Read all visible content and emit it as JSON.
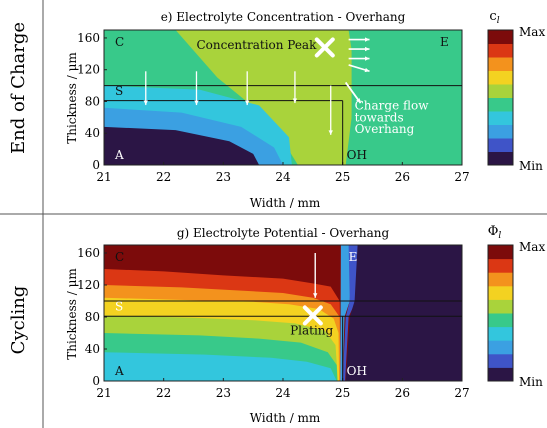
{
  "chart_data": [
    {
      "type": "heatmap",
      "title": "e) Electrolyte Concentration - Overhang",
      "row_label": "End of Charge",
      "xlabel": "Width / mm",
      "ylabel": "Thickness / μm",
      "xlim": [
        21,
        27
      ],
      "ylim": [
        0,
        170
      ],
      "x_ticks": [
        "21",
        "22",
        "23",
        "24",
        "25",
        "26",
        "27"
      ],
      "y_ticks": [
        "0",
        "40",
        "80",
        "120",
        "160"
      ],
      "x_tick_values": [
        21,
        22,
        23,
        24,
        25,
        26,
        27
      ],
      "y_tick_values": [
        0,
        40,
        80,
        120,
        160
      ],
      "region_lines": {
        "y": [
          100,
          81
        ],
        "x_overhang": 25.0,
        "x_separator_end": 25.0
      },
      "region_labels": [
        "C",
        "S",
        "A",
        "E",
        "OH"
      ],
      "annotations": [
        "Concentration Peak",
        "Charge flow",
        "towards",
        "Overhang"
      ],
      "peak_marker": {
        "x": 24.7,
        "y": 148
      },
      "colorbar": {
        "label": "c",
        "label_sub": "l",
        "max_label": "Max",
        "min_label": "Min"
      },
      "levels": 10,
      "contour_bands": [
        {
          "level": 9,
          "points": [
            [
              24.35,
              170
            ],
            [
              25.0,
              170
            ],
            [
              24.98,
              150
            ],
            [
              24.9,
              135
            ],
            [
              24.75,
              128
            ],
            [
              24.55,
              135
            ],
            [
              24.45,
              152
            ]
          ]
        },
        {
          "level": 8,
          "points": [
            [
              24.1,
              170
            ],
            [
              25.05,
              170
            ],
            [
              25.0,
              140
            ],
            [
              24.92,
              118
            ],
            [
              24.72,
              108
            ],
            [
              24.45,
              116
            ],
            [
              24.28,
              140
            ]
          ]
        },
        {
          "level": 7,
          "points": [
            [
              23.8,
              170
            ],
            [
              25.1,
              170
            ],
            [
              25.05,
              125
            ],
            [
              24.95,
              90
            ],
            [
              24.7,
              62
            ],
            [
              24.4,
              85
            ],
            [
              24.0,
              130
            ]
          ]
        },
        {
          "level": 6,
          "points": [
            [
              23.3,
              170
            ],
            [
              25.12,
              170
            ],
            [
              25.1,
              100
            ],
            [
              25.0,
              0
            ],
            [
              24.55,
              0
            ],
            [
              24.2,
              70
            ],
            [
              23.6,
              130
            ]
          ]
        },
        {
          "level": 5,
          "points": [
            [
              22.2,
              170
            ],
            [
              25.15,
              170
            ],
            [
              25.15,
              0
            ],
            [
              24.25,
              0
            ],
            [
              23.8,
              55
            ],
            [
              22.9,
              110
            ]
          ]
        },
        {
          "level": 3,
          "points": [
            [
              21,
              100
            ],
            [
              22.6,
              95
            ],
            [
              23.6,
              75
            ],
            [
              24.1,
              35
            ],
            [
              24.15,
              0
            ],
            [
              21,
              0
            ]
          ]
        },
        {
          "level": 2,
          "points": [
            [
              21,
              72
            ],
            [
              22.3,
              66
            ],
            [
              23.3,
              48
            ],
            [
              23.85,
              22
            ],
            [
              24.0,
              0
            ],
            [
              21,
              0
            ]
          ]
        },
        {
          "level": 0,
          "points": [
            [
              21,
              48
            ],
            [
              22.2,
              44
            ],
            [
              23.1,
              30
            ],
            [
              23.5,
              14
            ],
            [
              23.6,
              0
            ],
            [
              21,
              0
            ]
          ]
        },
        {
          "level": 4,
          "points": [
            [
              25.1,
              170
            ],
            [
              27,
              170
            ],
            [
              27,
              0
            ],
            [
              25.05,
              0
            ],
            [
              25.15,
              60
            ],
            [
              25.2,
              120
            ]
          ]
        }
      ],
      "base_level": 4
    },
    {
      "type": "heatmap",
      "title": "g) Electrolyte Potential - Overhang",
      "row_label": "Cycling",
      "xlabel": "Width / mm",
      "ylabel": "Thickness / μm",
      "xlim": [
        21,
        27
      ],
      "ylim": [
        0,
        170
      ],
      "x_ticks": [
        "21",
        "22",
        "23",
        "24",
        "25",
        "26",
        "27"
      ],
      "y_ticks": [
        "0",
        "40",
        "80",
        "120",
        "160"
      ],
      "x_tick_values": [
        21,
        22,
        23,
        24,
        25,
        26,
        27
      ],
      "y_tick_values": [
        0,
        40,
        80,
        120,
        160
      ],
      "region_lines": {
        "y": [
          100,
          81
        ],
        "x_overhang": 25.0,
        "x_separator_end": 25.0
      },
      "region_labels": [
        "C",
        "S",
        "A",
        "E",
        "OH"
      ],
      "annotations": [
        "Plating"
      ],
      "plating_marker": {
        "x": 24.5,
        "y": 82
      },
      "colorbar": {
        "label": "Φ",
        "label_sub": "l",
        "max_label": "Max",
        "min_label": "Min"
      },
      "levels": 10,
      "contour_bands": [
        {
          "level": 8,
          "points": [
            [
              21,
              140
            ],
            [
              22.0,
              137
            ],
            [
              23.0,
              132
            ],
            [
              24.0,
              128
            ],
            [
              24.5,
              122
            ],
            [
              24.8,
              118
            ],
            [
              24.95,
              100
            ],
            [
              24.97,
              0
            ],
            [
              21,
              0
            ]
          ]
        },
        {
          "level": 7,
          "points": [
            [
              21,
              120
            ],
            [
              22.3,
              117
            ],
            [
              23.3,
              113
            ],
            [
              24.0,
              110
            ],
            [
              24.5,
              104
            ],
            [
              24.8,
              96
            ],
            [
              24.95,
              80
            ],
            [
              24.96,
              0
            ],
            [
              21,
              0
            ]
          ]
        },
        {
          "level": 6,
          "points": [
            [
              21,
              104
            ],
            [
              22.5,
              101
            ],
            [
              23.5,
              99
            ],
            [
              24.1,
              96
            ],
            [
              24.6,
              90
            ],
            [
              24.85,
              78
            ],
            [
              24.93,
              60
            ],
            [
              24.94,
              0
            ],
            [
              21,
              0
            ]
          ]
        },
        {
          "level": 5,
          "points": [
            [
              21,
              82
            ],
            [
              22.5,
              79
            ],
            [
              23.5,
              76
            ],
            [
              24.2,
              72
            ],
            [
              24.7,
              63
            ],
            [
              24.88,
              45
            ],
            [
              24.92,
              0
            ],
            [
              21,
              0
            ]
          ]
        },
        {
          "level": 4,
          "points": [
            [
              21,
              60
            ],
            [
              22.6,
              57
            ],
            [
              23.6,
              53
            ],
            [
              24.3,
              48
            ],
            [
              24.75,
              36
            ],
            [
              24.9,
              20
            ],
            [
              24.91,
              0
            ],
            [
              21,
              0
            ]
          ]
        },
        {
          "level": 3,
          "points": [
            [
              21,
              36
            ],
            [
              22.7,
              33
            ],
            [
              23.8,
              29
            ],
            [
              24.4,
              24
            ],
            [
              24.8,
              16
            ],
            [
              24.9,
              0
            ],
            [
              21,
              0
            ]
          ]
        },
        {
          "level": 2,
          "points": [
            [
              24.97,
              170
            ],
            [
              25.15,
              170
            ],
            [
              25.12,
              100
            ],
            [
              25.03,
              80
            ],
            [
              25.0,
              0
            ],
            [
              24.96,
              0
            ]
          ]
        },
        {
          "level": 1,
          "points": [
            [
              25.1,
              170
            ],
            [
              25.3,
              170
            ],
            [
              25.22,
              100
            ],
            [
              25.1,
              80
            ],
            [
              25.04,
              0
            ],
            [
              25.0,
              0
            ],
            [
              25.05,
              80
            ],
            [
              25.12,
              100
            ]
          ]
        },
        {
          "level": 0,
          "points": [
            [
              25.25,
              170
            ],
            [
              27,
              170
            ],
            [
              27,
              0
            ],
            [
              25.05,
              0
            ],
            [
              25.12,
              80
            ],
            [
              25.2,
              100
            ]
          ]
        }
      ],
      "base_level": 9
    }
  ],
  "colors": {
    "scale": [
      "#2b1545",
      "#3f54c8",
      "#3ba0e2",
      "#33c6dd",
      "#38c98a",
      "#a9d33b",
      "#f3d221",
      "#f3921d",
      "#db3714",
      "#7c0b0b"
    ],
    "frame": "#222222",
    "annotation": "#ffffff"
  },
  "icons": [
    "cross-marker-icon",
    "down-arrow-icon",
    "right-arrow-icon"
  ]
}
